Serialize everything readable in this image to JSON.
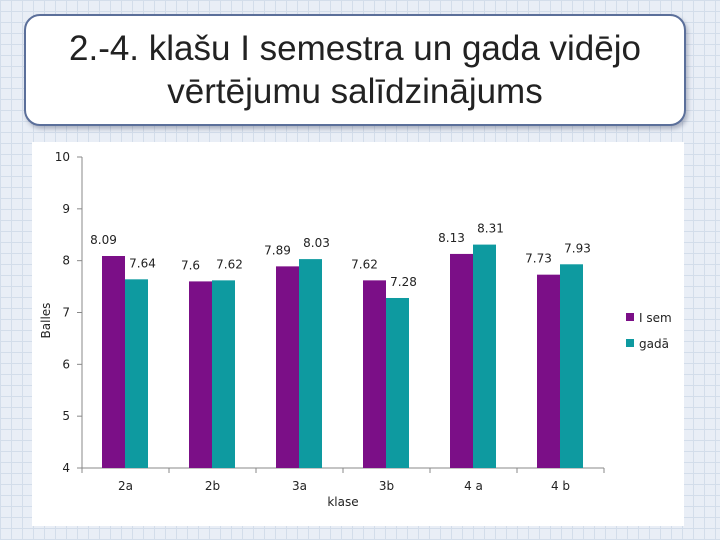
{
  "slide": {
    "title": "2.-4. klašu I semestra un gada vidējo vērtējumu salīdzinājums"
  },
  "chart_data": {
    "type": "bar",
    "categories": [
      "2a",
      "2b",
      "3a",
      "3b",
      "4 a",
      "4 b"
    ],
    "series": [
      {
        "name": "I sem",
        "color": "#7b0f87",
        "values": [
          8.09,
          7.6,
          7.89,
          7.62,
          8.13,
          7.73
        ]
      },
      {
        "name": "gadā",
        "color": "#0e9aa0",
        "values": [
          7.64,
          7.62,
          8.03,
          7.28,
          8.31,
          7.93
        ]
      }
    ],
    "data_labels": [
      [
        "8.09",
        "7.6",
        "7.89",
        "7.62",
        "8.13",
        "7.73"
      ],
      [
        "7.64",
        "7.62",
        "8.03",
        "7.28",
        "8.31",
        "7.93"
      ]
    ],
    "ylabel": "Balles",
    "xlabel": "klase",
    "ylim": [
      4,
      10
    ],
    "yticks": [
      "4",
      "5",
      "6",
      "7",
      "8",
      "9",
      "10"
    ],
    "grid": false,
    "legend": "right"
  }
}
